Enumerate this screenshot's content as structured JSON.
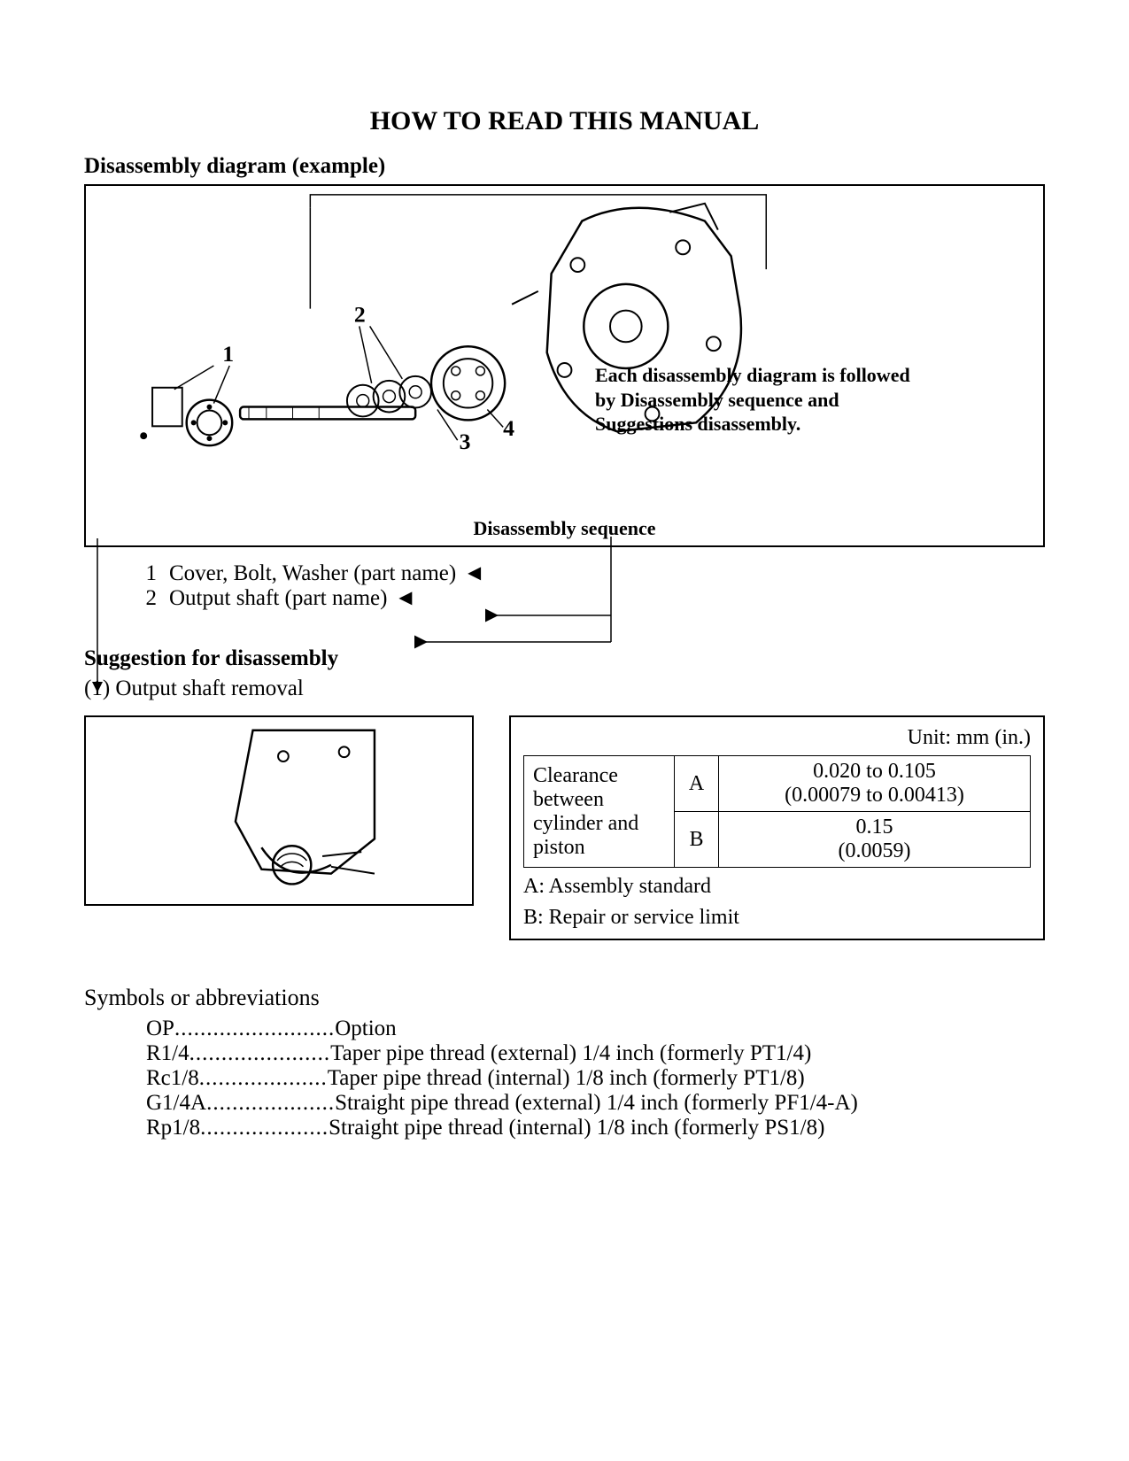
{
  "title": "HOW TO READ THIS MANUAL",
  "section1_heading": "Disassembly diagram (example)",
  "diagram": {
    "part_labels": [
      "1",
      "2",
      "3",
      "4"
    ],
    "callout_line1": "Each disassembly diagram is followed",
    "callout_line2": "by Disassembly sequence and",
    "callout_line3": "Suggestions disassembly.",
    "seq_label": "Disassembly sequence"
  },
  "sequence_list": [
    {
      "num": "1",
      "text": "Cover, Bolt, Washer (part name)"
    },
    {
      "num": "2",
      "text": "Output shaft (part name)"
    }
  ],
  "suggestion": {
    "heading": "Suggestion for disassembly",
    "item": "(1)  Output shaft removal"
  },
  "spec_table": {
    "unit": "Unit: mm (in.)",
    "row_label_l1": "Clearance",
    "row_label_l2": "between",
    "row_label_l3": "cylinder and",
    "row_label_l4": "piston",
    "a_label": "A",
    "a_val_l1": "0.020 to 0.105",
    "a_val_l2": "(0.00079 to 0.00413)",
    "b_label": "B",
    "b_val_l1": "0.15",
    "b_val_l2": "(0.0059)",
    "legend_a": "A: Assembly standard",
    "legend_b": "B: Repair or service limit"
  },
  "symbols": {
    "title": "Symbols or abbreviations",
    "rows": [
      {
        "key": "OP",
        "dots": ".........................",
        "val": "Option"
      },
      {
        "key": "R1/4 ",
        "dots": "......................",
        "val": "Taper pipe thread (external) 1/4 inch (formerly PT1/4)"
      },
      {
        "key": "Rc1/8 ",
        "dots": "....................",
        "val": "Taper pipe thread (internal) 1/8 inch (formerly PT1/8)"
      },
      {
        "key": "G1/4A",
        "dots": "....................",
        "val": "Straight pipe thread (external) 1/4 inch (formerly PF1/4-A)"
      },
      {
        "key": "Rp1/8 ",
        "dots": "....................",
        "val": "Straight pipe thread (internal) 1/8 inch (formerly PS1/8)"
      }
    ]
  },
  "colors": {
    "stroke": "#000000",
    "bg": "#ffffff"
  }
}
